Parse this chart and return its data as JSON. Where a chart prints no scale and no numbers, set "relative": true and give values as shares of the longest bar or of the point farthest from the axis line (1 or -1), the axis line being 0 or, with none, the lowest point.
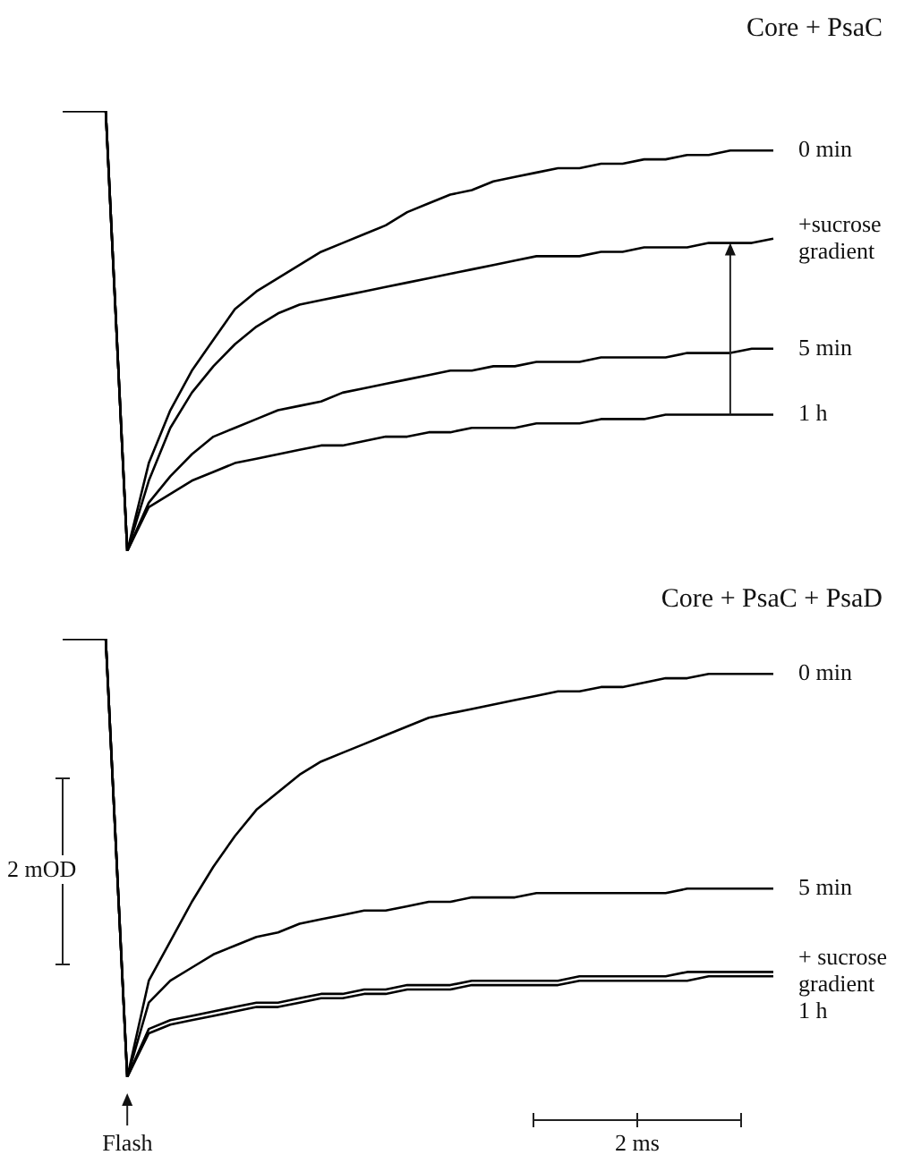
{
  "chart_data": [
    {
      "type": "line",
      "title": "Core + PsaC",
      "relative": true,
      "marker": "none",
      "categories": [
        null,
        null,
        null,
        null,
        null,
        null,
        null,
        null,
        null,
        null,
        null,
        null,
        null,
        null,
        null,
        null,
        null,
        null,
        null,
        null,
        null,
        null,
        null,
        null,
        null,
        null,
        null,
        null,
        null,
        null,
        null,
        null,
        null,
        null
      ],
      "series": [
        {
          "name": "0 min",
          "color": "#000000",
          "values": [
            1,
            1,
            1,
            0,
            0.2,
            0.32,
            0.41,
            0.48,
            0.55,
            0.59,
            0.62,
            0.65,
            0.68,
            0.7,
            0.72,
            0.74,
            0.77,
            0.79,
            0.81,
            0.82,
            0.84,
            0.85,
            0.86,
            0.87,
            0.87,
            0.88,
            0.88,
            0.89,
            0.89,
            0.9,
            0.9,
            0.91,
            0.91,
            0.91
          ]
        },
        {
          "name": "+sucrose gradient",
          "color": "#000000",
          "values": [
            1,
            1,
            1,
            0,
            0.16,
            0.28,
            0.36,
            0.42,
            0.47,
            0.51,
            0.54,
            0.56,
            0.57,
            0.58,
            0.59,
            0.6,
            0.61,
            0.62,
            0.63,
            0.64,
            0.65,
            0.66,
            0.67,
            0.67,
            0.67,
            0.68,
            0.68,
            0.69,
            0.69,
            0.69,
            0.7,
            0.7,
            0.7,
            0.71
          ]
        },
        {
          "name": "5 min",
          "color": "#000000",
          "values": [
            1,
            1,
            1,
            0,
            0.11,
            0.17,
            0.22,
            0.26,
            0.28,
            0.3,
            0.32,
            0.33,
            0.34,
            0.36,
            0.37,
            0.38,
            0.39,
            0.4,
            0.41,
            0.41,
            0.42,
            0.42,
            0.43,
            0.43,
            0.43,
            0.44,
            0.44,
            0.44,
            0.44,
            0.45,
            0.45,
            0.45,
            0.46,
            0.46
          ]
        },
        {
          "name": "1 h",
          "color": "#000000",
          "values": [
            1,
            1,
            1,
            0,
            0.1,
            0.13,
            0.16,
            0.18,
            0.2,
            0.21,
            0.22,
            0.23,
            0.24,
            0.24,
            0.25,
            0.26,
            0.26,
            0.27,
            0.27,
            0.28,
            0.28,
            0.28,
            0.29,
            0.29,
            0.29,
            0.3,
            0.3,
            0.3,
            0.31,
            0.31,
            0.31,
            0.31,
            0.31,
            0.31
          ]
        }
      ]
    },
    {
      "type": "line",
      "title": "Core + PsaC + PsaD",
      "relative": true,
      "marker": "none",
      "categories": [
        null,
        null,
        null,
        null,
        null,
        null,
        null,
        null,
        null,
        null,
        null,
        null,
        null,
        null,
        null,
        null,
        null,
        null,
        null,
        null,
        null,
        null,
        null,
        null,
        null,
        null,
        null,
        null,
        null,
        null,
        null,
        null,
        null,
        null
      ],
      "series": [
        {
          "name": "0 min",
          "color": "#000000",
          "values": [
            1,
            1,
            1,
            0,
            0.22,
            0.31,
            0.4,
            0.48,
            0.55,
            0.61,
            0.65,
            0.69,
            0.72,
            0.74,
            0.76,
            0.78,
            0.8,
            0.82,
            0.83,
            0.84,
            0.85,
            0.86,
            0.87,
            0.88,
            0.88,
            0.89,
            0.89,
            0.9,
            0.91,
            0.91,
            0.92,
            0.92,
            0.92,
            0.92
          ]
        },
        {
          "name": "5 min",
          "color": "#000000",
          "values": [
            1,
            1,
            1,
            0,
            0.17,
            0.22,
            0.25,
            0.28,
            0.3,
            0.32,
            0.33,
            0.35,
            0.36,
            0.37,
            0.38,
            0.38,
            0.39,
            0.4,
            0.4,
            0.41,
            0.41,
            0.41,
            0.42,
            0.42,
            0.42,
            0.42,
            0.42,
            0.42,
            0.42,
            0.43,
            0.43,
            0.43,
            0.43,
            0.43
          ]
        },
        {
          "name": "+ sucrose gradient",
          "color": "#000000",
          "values": [
            1,
            1,
            1,
            0,
            0.11,
            0.13,
            0.14,
            0.15,
            0.16,
            0.17,
            0.17,
            0.18,
            0.19,
            0.19,
            0.2,
            0.2,
            0.21,
            0.21,
            0.21,
            0.22,
            0.22,
            0.22,
            0.22,
            0.22,
            0.23,
            0.23,
            0.23,
            0.23,
            0.23,
            0.24,
            0.24,
            0.24,
            0.24,
            0.24
          ]
        },
        {
          "name": "1 h",
          "color": "#000000",
          "values": [
            1,
            1,
            1,
            0,
            0.1,
            0.12,
            0.13,
            0.14,
            0.15,
            0.16,
            0.16,
            0.17,
            0.18,
            0.18,
            0.19,
            0.19,
            0.2,
            0.2,
            0.2,
            0.21,
            0.21,
            0.21,
            0.21,
            0.21,
            0.22,
            0.22,
            0.22,
            0.22,
            0.22,
            0.22,
            0.23,
            0.23,
            0.23,
            0.23
          ]
        }
      ],
      "annotations": [
        "2 mOD",
        "2 ms",
        "Flash"
      ]
    }
  ]
}
